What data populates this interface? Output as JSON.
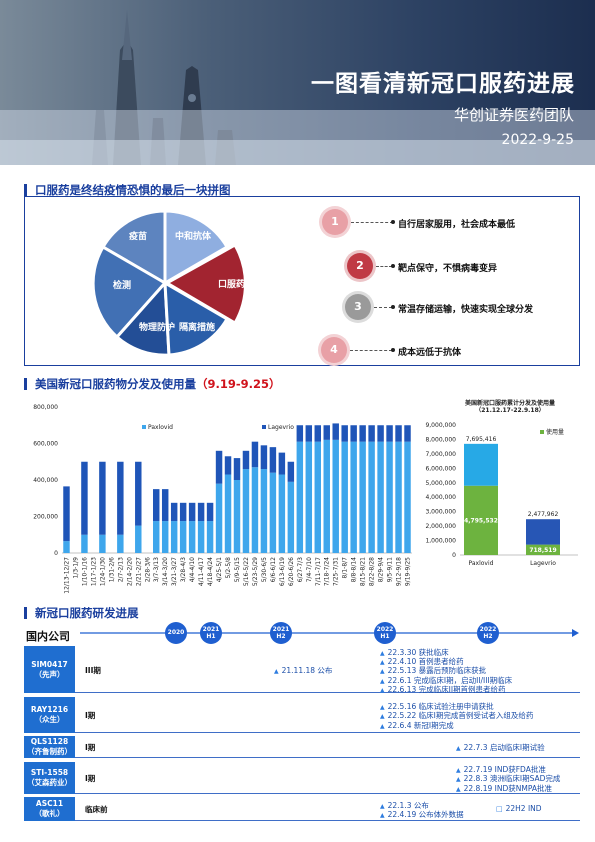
{
  "header": {
    "title": "一图看清新冠口服药进展",
    "subtitle": "华创证券医药团队",
    "date": "2022-9-25"
  },
  "section1": {
    "title": "口服药是终结疫情恐惧的最后一块拼图",
    "segments": [
      "疫苗",
      "中和抗体",
      "检测",
      "物理防护",
      "隔离措施"
    ],
    "highlight": "口服药",
    "points": [
      {
        "num": "1",
        "text": "自行居家服用，社会成本最低"
      },
      {
        "num": "2",
        "text": "靶点保守，不惧病毒变异"
      },
      {
        "num": "3",
        "text": "常温存储运输，快速实现全球分发"
      },
      {
        "num": "4",
        "text": "成本远低于抗体"
      }
    ]
  },
  "section2": {
    "title": "美国新冠口服药物分发及使用量",
    "title_period": "（9.19-9.25）"
  },
  "chart_data": [
    {
      "type": "bar",
      "stacked": true,
      "title": "",
      "legend": [
        "Paxlovid",
        "Lagevrio"
      ],
      "legend_position": "top",
      "colors": {
        "Paxlovid": "#3ea6ec",
        "Lagevrio": "#1f55b8"
      },
      "ylim": [
        0,
        800000
      ],
      "yticks": [
        "0",
        "200,000",
        "400,000",
        "600,000",
        "800,000"
      ],
      "categories": [
        "12/13-12/27",
        "1/3-1/9",
        "1/10-1/16",
        "1/17-1/23",
        "1/24-1/30",
        "1/31-2/6",
        "2/7-2/13",
        "2/14-2/20",
        "2/21-2/27",
        "2/28-3/6",
        "3/7-3/13",
        "3/14-3/20",
        "3/21-3/27",
        "3/28-4/3",
        "4/4-4/10",
        "4/11-4/17",
        "4/18-4/24",
        "4/25-5/1",
        "5/2-5/8",
        "5/9-5/15",
        "5/16-5/22",
        "5/23-5/29",
        "5/30-6/5",
        "6/6-6/12",
        "6/13-6/19",
        "6/20-6/26",
        "6/27-7/3",
        "7/4-7/10",
        "7/11-7/17",
        "7/18-7/24",
        "7/25-7/31",
        "8/1-8/7",
        "8/8-8/14",
        "8/15-8/21",
        "8/22-8/28",
        "8/29-9/4",
        "9/5-9/11",
        "9/12-9/18",
        "9/19-9/25"
      ],
      "x_tick_labels": [
        "12/13-12/27",
        "1/3-1/9",
        "1/10-1/16",
        "1/17-1/23",
        "1/24-1/30",
        "1/31-2/6",
        "2/7-2/13",
        "2/14-2/20",
        "2/21-2/27",
        "2/28-3/6",
        "3/7-3/13",
        "3/14-3/20",
        "3/21-3/27",
        "3/28-4/3",
        "4/4-4/10",
        "4/11-4/17",
        "4/18-4/24",
        "4/25-5/1",
        "5/2-5/8",
        "5/9-5/15",
        "5/16-5/22",
        "5/23-5/29",
        "5/30-6/5",
        "6/6-6/12",
        "6/13-6/19",
        "6/20-6/26",
        "6/27-7/3",
        "7/4-7/10",
        "7/11-7/17",
        "7/18-7/24",
        "7/25-7/31",
        "8/1-8/7",
        "8/8-8/14",
        "8/15-8/21",
        "8/22-8/28",
        "8/29-9/4",
        "9/5-9/11",
        "9/12-9/18",
        "9/19-9/25"
      ],
      "series": [
        {
          "name": "Paxlovid",
          "values": [
            65000,
            0,
            100000,
            0,
            100000,
            0,
            100000,
            0,
            150000,
            0,
            175000,
            175000,
            175000,
            175000,
            175000,
            175000,
            175000,
            380000,
            430000,
            400000,
            460000,
            470000,
            460000,
            440000,
            430000,
            390000,
            610000,
            610000,
            610000,
            620000,
            620000,
            610000,
            610000,
            610000,
            610000,
            610000,
            610000,
            610000,
            610000
          ]
        },
        {
          "name": "Lagevrio",
          "values": [
            300000,
            0,
            400000,
            0,
            400000,
            0,
            400000,
            0,
            350000,
            0,
            175000,
            175000,
            100000,
            100000,
            100000,
            100000,
            100000,
            180000,
            100000,
            120000,
            100000,
            140000,
            130000,
            140000,
            120000,
            110000,
            90000,
            90000,
            90000,
            80000,
            90000,
            90000,
            90000,
            90000,
            90000,
            90000,
            90000,
            90000,
            90000
          ]
        }
      ]
    },
    {
      "type": "bar",
      "stacked": true,
      "title": "美国新冠口服药累计分发及使用量",
      "subtitle": "（21.12.17-22.9.18）",
      "legend": [
        "使用量"
      ],
      "legend_position": "top-right",
      "categories": [
        "Paxlovid",
        "Lagevrio"
      ],
      "ylim": [
        0,
        9000000
      ],
      "yticks": [
        "0",
        "1,000,000",
        "2,000,000",
        "3,000,000",
        "4,000,000",
        "5,000,000",
        "6,000,000",
        "7,000,000",
        "8,000,000",
        "9,000,000"
      ],
      "series": [
        {
          "name": "使用量",
          "values": [
            4795532,
            718519
          ],
          "color": "#6db33f"
        },
        {
          "name": "",
          "values": [
            2899884,
            1759443
          ],
          "color_paxlovid": "#27a9e6",
          "color_lagevrio": "#2756b5"
        }
      ],
      "totals": [
        "7,695,416",
        "2,477,962"
      ],
      "used_labels": [
        "4,795,532",
        "718,519"
      ]
    }
  ],
  "section3": {
    "title": "新冠口服药研发进展",
    "group": "国内公司",
    "timeline": [
      {
        "top": "2020",
        "bottom": ""
      },
      {
        "top": "2021",
        "bottom": "H1"
      },
      {
        "top": "2021",
        "bottom": "H2"
      },
      {
        "top": "2022",
        "bottom": "H1"
      },
      {
        "top": "2022",
        "bottom": "H2"
      }
    ],
    "rows": [
      {
        "name": "SIM0417",
        "company": "（先声）",
        "phase": "III期",
        "h2_2021": [
          "21.11.18 公布"
        ],
        "h1_2022": [
          "22.3.30 获批临床",
          "22.4.10 首例患者给药",
          "22.5.13 暴露后预防临床获批",
          "22.6.1 完成临床I期，启动II/III期临床",
          "22.6.13 完成临床II期首例患者给药"
        ],
        "h2_2022": []
      },
      {
        "name": "RAY1216",
        "company": "（众生）",
        "phase": "I期",
        "h2_2021": [],
        "h1_2022": [
          "22.5.16 临床试验注册申请获批",
          "22.5.22 临床I期完成首例受试者入组及给药",
          "22.6.4 新冠I期完成"
        ],
        "h2_2022": []
      },
      {
        "name": "QLS1128",
        "company": "（齐鲁制药）",
        "phase": "I期",
        "h2_2021": [],
        "h1_2022": [],
        "h2_2022": [
          "22.7.3 启动临床I期试验"
        ]
      },
      {
        "name": "STI-1558",
        "company": "（艾森药业）",
        "phase": "I期",
        "h2_2021": [],
        "h1_2022": [],
        "h2_2022": [
          "22.7.19 IND获FDA批准",
          "22.8.3 澳洲临床I期SAD完成",
          "22.8.19 IND获NMPA批准"
        ]
      },
      {
        "name": "ASC11",
        "company": "（歌礼）",
        "phase": "临床前",
        "h2_2021": [],
        "h1_2022": [
          "22.1.3 公布",
          "22.4.19 公布体外数据"
        ],
        "h2_2022": [
          "22H2 IND"
        ]
      }
    ]
  }
}
